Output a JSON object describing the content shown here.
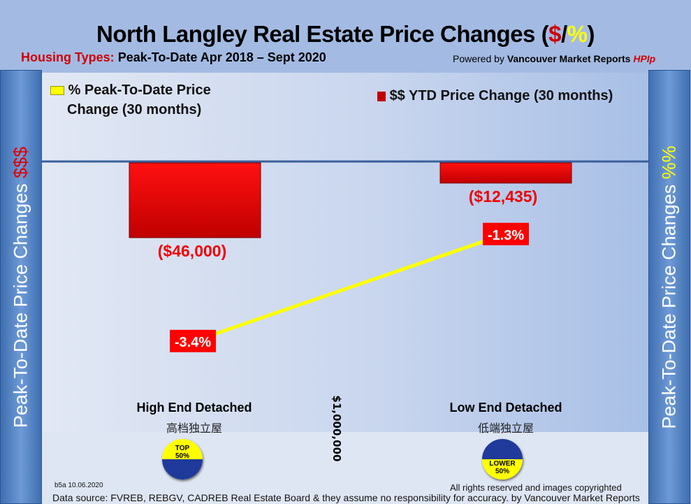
{
  "header": {
    "title_main": "North Langley Real Estate Price Changes (",
    "title_dollar": "$",
    "title_slash": "/",
    "title_pct": "%",
    "title_close": ")",
    "subtitle_label": "Housing Types:",
    "subtitle_text": " Peak-To-Date Apr 2018 – Sept 2020",
    "powered_prefix": "Powered by ",
    "powered_brand": "Vancouver Market Reports ",
    "powered_hpi": "HPIp"
  },
  "side": {
    "left_text": "Peak-To-Date Price Changes ",
    "left_accent": "$$$",
    "right_text": "Peak-To-Date  Price  Changes ",
    "right_accent": "%%"
  },
  "colors": {
    "bar": "#e00000",
    "line": "#ffff00",
    "label_box": "#ff0000"
  },
  "chart_data": {
    "type": "bar+line",
    "title": "North Langley Real Estate Price Changes ($/%)",
    "categories": [
      "High End Detached",
      "Low End Detached"
    ],
    "categories_zh": [
      "高档独立屋",
      "低端独立屋"
    ],
    "series": [
      {
        "name": "$$ YTD Price Change (30 months)",
        "type": "bar",
        "values": [
          -46000,
          -12435
        ],
        "labels": [
          "($46,000)",
          "($12,435)"
        ]
      },
      {
        "name": "% Peak-To-Date Price Change (30 months)",
        "type": "line",
        "values": [
          -3.4,
          -1.3
        ],
        "labels": [
          "-3.4%",
          "-1.3%"
        ]
      }
    ],
    "legend": [
      "% Peak-To-Date Price Change (30 months)",
      "$$ YTD Price Change (30 months)"
    ],
    "legend_line1": "% Peak-To-Date Price",
    "legend_line2": "Change (30 months)",
    "divider_label": "$1,000,000",
    "badges": [
      {
        "top": "TOP",
        "bottom": "50%"
      },
      {
        "top": "LOWER",
        "bottom": "50%"
      }
    ]
  },
  "footer": {
    "code": "b5a 10.06.2020",
    "rights": "All rights reserved and  images copyrighted",
    "source": "Data source: FVREB, REBGV, CADREB Real Estate Board & they assume no responsibility for accuracy. by Vancouver Market Reports"
  }
}
